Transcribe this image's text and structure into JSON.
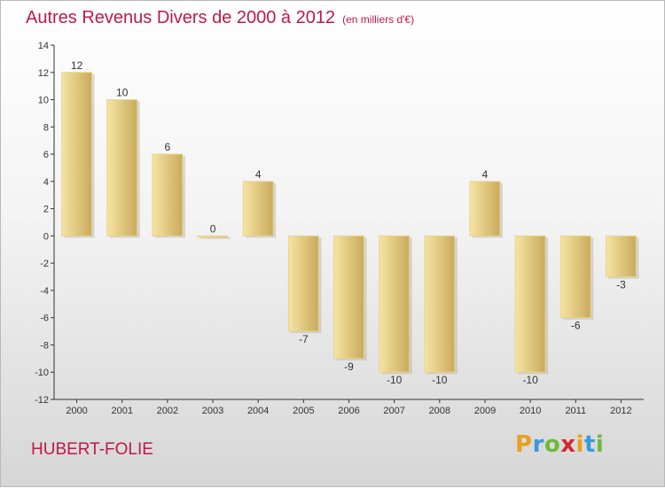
{
  "header": {
    "title": "Autres Revenus Divers de 2000 à 2012",
    "unit": "(en milliers d'€)"
  },
  "footer": {
    "place": "HUBERT-FOLIE",
    "logo_letters": [
      "P",
      "r",
      "o",
      "x",
      "i",
      "t",
      "i"
    ],
    "logo_colors": [
      "#e8a01c",
      "#3a9ad9",
      "#6dba3c",
      "#d7262f",
      "#e8a01c",
      "#3a9ad9",
      "#6dba3c"
    ]
  },
  "colors": {
    "title": "#c0184a",
    "bar_light": "#f6e4a3",
    "bar_dark": "#c9aa5c",
    "axis": "#333333"
  },
  "chart_data": {
    "type": "bar",
    "title": "Autres Revenus Divers de 2000 à 2012",
    "subtitle": "(en milliers d'€)",
    "xlabel": "",
    "ylabel": "",
    "categories": [
      "2000",
      "2001",
      "2002",
      "2003",
      "2004",
      "2005",
      "2006",
      "2007",
      "2008",
      "2009",
      "2010",
      "2011",
      "2012"
    ],
    "values": [
      12,
      10,
      6,
      0,
      4,
      -7,
      -9,
      -10,
      -10,
      4,
      -10,
      -6,
      -3
    ],
    "data_labels": [
      "12",
      "10",
      "6",
      "0",
      "4",
      "-7",
      "-9",
      "-10",
      "-10",
      "4",
      "-10",
      "-6",
      "-3"
    ],
    "ylim": [
      -12,
      14
    ],
    "yticks": [
      -12,
      -10,
      -8,
      -6,
      -4,
      -2,
      0,
      2,
      4,
      6,
      8,
      10,
      12,
      14
    ],
    "grid": false,
    "legend": "none"
  }
}
